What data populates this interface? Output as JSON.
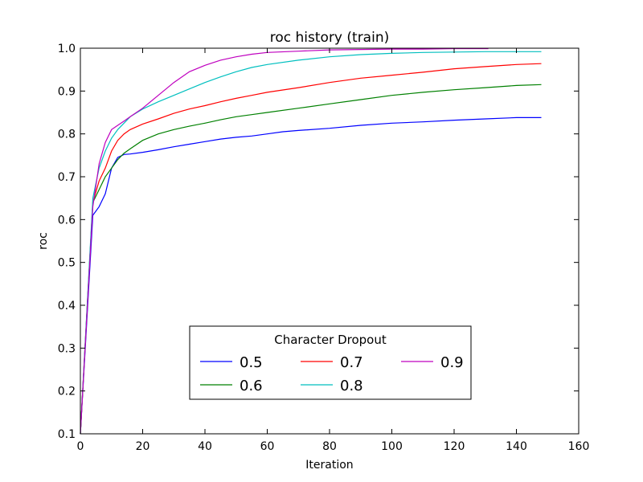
{
  "chart_data": {
    "type": "line",
    "title": "roc history (train)",
    "xlabel": "Iteration",
    "ylabel": "roc",
    "xlim": [
      0,
      160
    ],
    "ylim": [
      0.1,
      1.0
    ],
    "xticks": [
      "0",
      "20",
      "40",
      "60",
      "80",
      "100",
      "120",
      "140",
      "160"
    ],
    "yticks": [
      "0.1",
      "0.2",
      "0.3",
      "0.4",
      "0.5",
      "0.6",
      "0.7",
      "0.8",
      "0.9",
      "1.0"
    ],
    "grid": false,
    "legend": {
      "title": "Character Dropout",
      "placement": "lower-center",
      "ncol": 3
    },
    "series": [
      {
        "name": "0.5",
        "color": "#0000ff",
        "points": [
          [
            0,
            0.1
          ],
          [
            4,
            0.61
          ],
          [
            6,
            0.63
          ],
          [
            8,
            0.66
          ],
          [
            10,
            0.72
          ],
          [
            12,
            0.745
          ],
          [
            14,
            0.752
          ],
          [
            16,
            0.753
          ],
          [
            20,
            0.757
          ],
          [
            25,
            0.763
          ],
          [
            30,
            0.77
          ],
          [
            35,
            0.776
          ],
          [
            40,
            0.782
          ],
          [
            45,
            0.788
          ],
          [
            50,
            0.792
          ],
          [
            55,
            0.795
          ],
          [
            60,
            0.8
          ],
          [
            65,
            0.805
          ],
          [
            70,
            0.808
          ],
          [
            80,
            0.813
          ],
          [
            90,
            0.82
          ],
          [
            100,
            0.825
          ],
          [
            110,
            0.828
          ],
          [
            120,
            0.832
          ],
          [
            130,
            0.835
          ],
          [
            140,
            0.838
          ],
          [
            148,
            0.838
          ]
        ]
      },
      {
        "name": "0.6",
        "color": "#008000",
        "points": [
          [
            0,
            0.1
          ],
          [
            4,
            0.64
          ],
          [
            6,
            0.67
          ],
          [
            8,
            0.7
          ],
          [
            10,
            0.72
          ],
          [
            12,
            0.74
          ],
          [
            14,
            0.755
          ],
          [
            16,
            0.765
          ],
          [
            20,
            0.785
          ],
          [
            25,
            0.8
          ],
          [
            30,
            0.81
          ],
          [
            35,
            0.818
          ],
          [
            40,
            0.825
          ],
          [
            45,
            0.833
          ],
          [
            50,
            0.84
          ],
          [
            55,
            0.845
          ],
          [
            60,
            0.85
          ],
          [
            70,
            0.86
          ],
          [
            80,
            0.87
          ],
          [
            90,
            0.88
          ],
          [
            100,
            0.89
          ],
          [
            110,
            0.897
          ],
          [
            120,
            0.903
          ],
          [
            130,
            0.908
          ],
          [
            140,
            0.913
          ],
          [
            148,
            0.915
          ]
        ]
      },
      {
        "name": "0.7",
        "color": "#ff0000",
        "points": [
          [
            0,
            0.1
          ],
          [
            4,
            0.64
          ],
          [
            6,
            0.69
          ],
          [
            8,
            0.72
          ],
          [
            10,
            0.76
          ],
          [
            12,
            0.785
          ],
          [
            14,
            0.8
          ],
          [
            16,
            0.81
          ],
          [
            20,
            0.823
          ],
          [
            25,
            0.835
          ],
          [
            30,
            0.848
          ],
          [
            35,
            0.858
          ],
          [
            40,
            0.866
          ],
          [
            45,
            0.875
          ],
          [
            50,
            0.883
          ],
          [
            55,
            0.89
          ],
          [
            60,
            0.897
          ],
          [
            70,
            0.908
          ],
          [
            80,
            0.92
          ],
          [
            90,
            0.93
          ],
          [
            100,
            0.937
          ],
          [
            110,
            0.944
          ],
          [
            120,
            0.952
          ],
          [
            130,
            0.957
          ],
          [
            140,
            0.962
          ],
          [
            148,
            0.964
          ]
        ]
      },
      {
        "name": "0.8",
        "color": "#00bfbf",
        "points": [
          [
            0,
            0.1
          ],
          [
            4,
            0.65
          ],
          [
            6,
            0.72
          ],
          [
            8,
            0.76
          ],
          [
            10,
            0.79
          ],
          [
            12,
            0.81
          ],
          [
            14,
            0.825
          ],
          [
            16,
            0.84
          ],
          [
            20,
            0.858
          ],
          [
            25,
            0.875
          ],
          [
            30,
            0.89
          ],
          [
            35,
            0.905
          ],
          [
            40,
            0.92
          ],
          [
            45,
            0.933
          ],
          [
            50,
            0.945
          ],
          [
            55,
            0.955
          ],
          [
            60,
            0.962
          ],
          [
            70,
            0.972
          ],
          [
            80,
            0.98
          ],
          [
            90,
            0.985
          ],
          [
            100,
            0.988
          ],
          [
            110,
            0.99
          ],
          [
            120,
            0.991
          ],
          [
            130,
            0.992
          ],
          [
            140,
            0.992
          ],
          [
            148,
            0.992
          ]
        ]
      },
      {
        "name": "0.9",
        "color": "#bf00bf",
        "points": [
          [
            0,
            0.1
          ],
          [
            4,
            0.63
          ],
          [
            6,
            0.73
          ],
          [
            8,
            0.78
          ],
          [
            10,
            0.81
          ],
          [
            12,
            0.82
          ],
          [
            14,
            0.83
          ],
          [
            16,
            0.84
          ],
          [
            20,
            0.86
          ],
          [
            25,
            0.89
          ],
          [
            30,
            0.92
          ],
          [
            35,
            0.945
          ],
          [
            40,
            0.96
          ],
          [
            45,
            0.972
          ],
          [
            50,
            0.98
          ],
          [
            55,
            0.986
          ],
          [
            60,
            0.99
          ],
          [
            70,
            0.993
          ],
          [
            80,
            0.996
          ],
          [
            90,
            0.997
          ],
          [
            100,
            0.998
          ],
          [
            110,
            0.998
          ],
          [
            120,
            0.999
          ],
          [
            131,
            0.999
          ]
        ]
      }
    ]
  }
}
